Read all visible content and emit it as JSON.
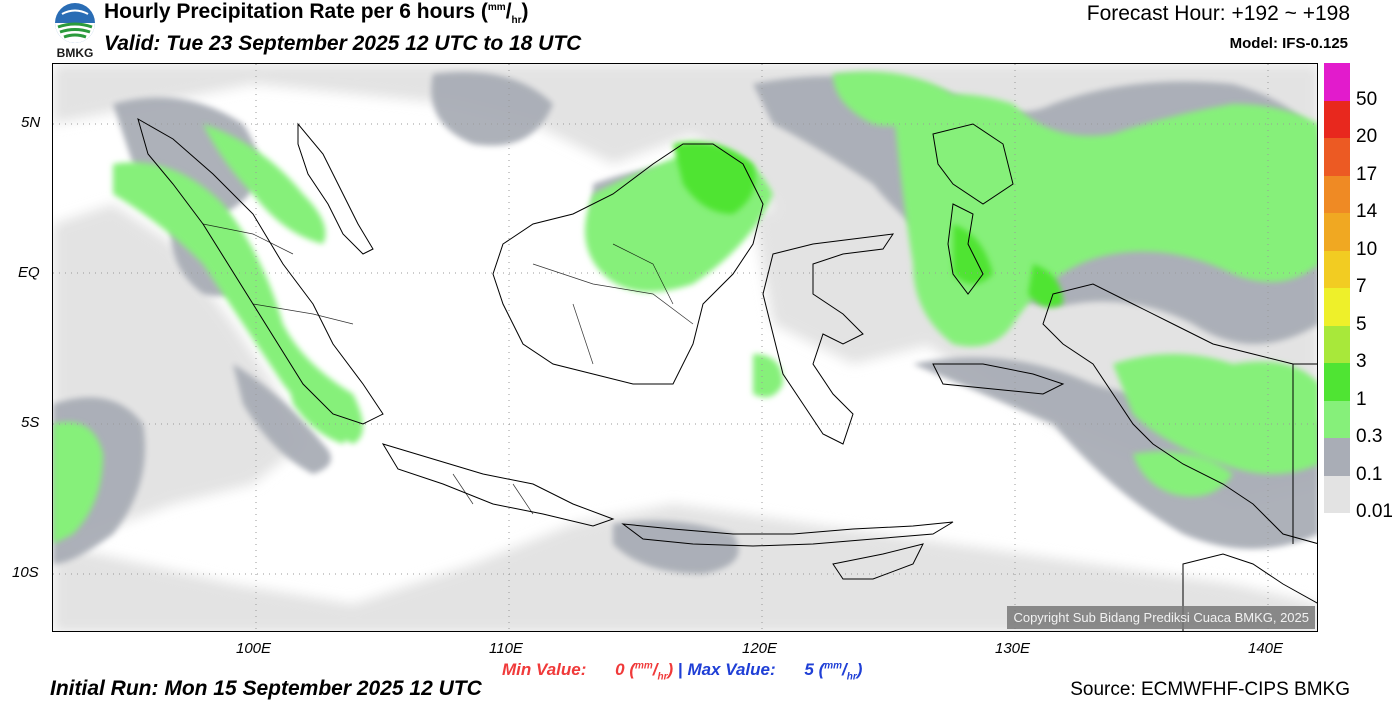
{
  "header": {
    "logo_text": "BMKG",
    "title": "Hourly Precipitation Rate per 6 hours (",
    "title_unit_num": "mm",
    "title_unit_den": "hr",
    "title_close": ")",
    "valid": "Valid: Tue 23 September 2025 12 UTC to 18 UTC",
    "forecast_hour": "Forecast Hour: +192 ~ +198",
    "model": "Model: IFS-0.125"
  },
  "map": {
    "lat_ticks": [
      "5N",
      "EQ",
      "5S",
      "10S"
    ],
    "lon_ticks": [
      "100E",
      "110E",
      "120E",
      "130E",
      "140E"
    ],
    "copyright": "Copyright Sub Bidang Prediksi Cuaca BMKG, 2025"
  },
  "colorbar": {
    "labels": [
      "50",
      "20",
      "17",
      "14",
      "10",
      "7",
      "5",
      "3",
      "1",
      "0.3",
      "0.1",
      "0.01"
    ],
    "colors": [
      "#e21bcc",
      "#e8281e",
      "#ec5a23",
      "#ef8a24",
      "#f0a822",
      "#f2cc22",
      "#eef02a",
      "#a8e83a",
      "#4fe433",
      "#86f07a",
      "#a9adb6",
      "#e3e3e3"
    ]
  },
  "footer": {
    "min_label": "Min Value:",
    "min_value": "0",
    "max_label": "Max Value:",
    "max_value": "5",
    "unit_num": "mm",
    "unit_den": "hr",
    "separator": "|",
    "initial_run": "Initial Run: Mon 15 September 2025 12 UTC",
    "source": "Source: ECMWFHF-CIPS BMKG"
  }
}
